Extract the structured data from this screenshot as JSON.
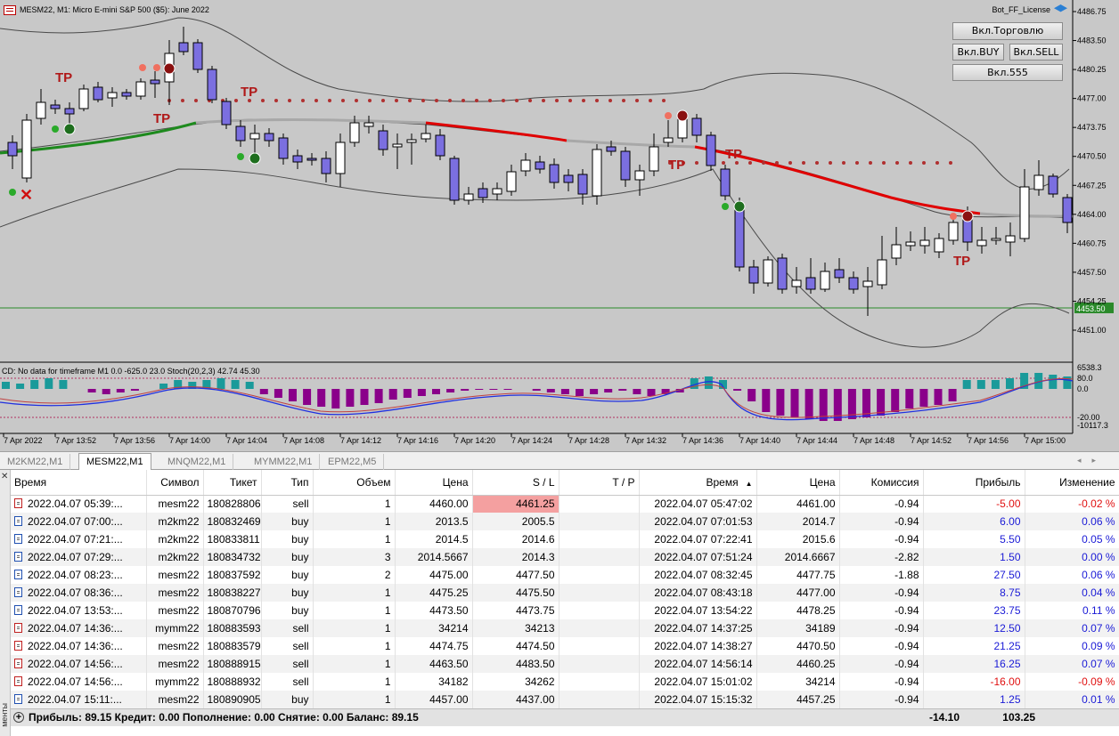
{
  "chart": {
    "title": "MESM22, M1:  Micro E-mini S&P 500 ($5): June 2022",
    "license_label": "Bot_FF_License",
    "buttons": {
      "trading": "Вкл.Торговлю",
      "buy": "Вкл.BUY",
      "sell": "Вкл.SELL",
      "b555": "Вкл.555"
    },
    "price_axis": [
      "4486.75",
      "4483.50",
      "4480.25",
      "4477.00",
      "4473.75",
      "4470.50",
      "4467.25",
      "4464.00",
      "4460.75",
      "4457.50",
      "4454.25",
      "4451.00"
    ],
    "current_price": "4453.50",
    "sub_title": "CD: No data for timeframe M1 0.0 -625.0 23.0 Stoch(20,2,3) 42.74 45.30",
    "sub_axis": [
      "6538.3",
      "80.0",
      "0.0",
      "-20.00",
      "-10117.3"
    ],
    "time_axis": [
      "7 Apr 2022",
      "7 Apr 13:52",
      "7 Apr 13:56",
      "7 Apr 14:00",
      "7 Apr 14:04",
      "7 Apr 14:08",
      "7 Apr 14:12",
      "7 Apr 14:16",
      "7 Apr 14:20",
      "7 Apr 14:24",
      "7 Apr 14:28",
      "7 Apr 14:32",
      "7 Apr 14:36",
      "7 Apr 14:40",
      "7 Apr 14:44",
      "7 Apr 14:48",
      "7 Apr 14:52",
      "7 Apr 14:56",
      "7 Apr 15:00"
    ],
    "tp_label": "TP",
    "colors": {
      "bull_candle": "#ffffff",
      "bear_candle": "#7b6fe0",
      "ma_green": "#1e8a1e",
      "ma_red": "#e00000",
      "ma_gray": "#a8a8a8",
      "hist_teal": "#1a9a9a",
      "hist_purple": "#8a008a"
    }
  },
  "tabs": [
    "M2KM22,M1",
    "MESM22,M1",
    "MNQM22,M1",
    "MYMM22,M1",
    "EPM22,M5"
  ],
  "active_tab": "MESM22,M1",
  "table": {
    "headers": [
      "Время",
      "Символ",
      "Тикет",
      "Тип",
      "Объем",
      "Цена",
      "S / L",
      "T / P",
      "Время",
      "Цена",
      "Комиссия",
      "Прибыль",
      "Изменение"
    ],
    "sort_indicator": "▲",
    "rows": [
      [
        "2022.04.07 05:39:...",
        "mesm22",
        "180828806",
        "sell",
        "1",
        "4460.00",
        "4461.25",
        "",
        "2022.04.07 05:47:02",
        "4461.00",
        "-0.94",
        "-5.00",
        "-0.02 %"
      ],
      [
        "2022.04.07 07:00:...",
        "m2km22",
        "180832469",
        "buy",
        "1",
        "2013.5",
        "2005.5",
        "",
        "2022.04.07 07:01:53",
        "2014.7",
        "-0.94",
        "6.00",
        "0.06 %"
      ],
      [
        "2022.04.07 07:21:...",
        "m2km22",
        "180833811",
        "buy",
        "1",
        "2014.5",
        "2014.6",
        "",
        "2022.04.07 07:22:41",
        "2015.6",
        "-0.94",
        "5.50",
        "0.05 %"
      ],
      [
        "2022.04.07 07:29:...",
        "m2km22",
        "180834732",
        "buy",
        "3",
        "2014.5667",
        "2014.3",
        "",
        "2022.04.07 07:51:24",
        "2014.6667",
        "-2.82",
        "1.50",
        "0.00 %"
      ],
      [
        "2022.04.07 08:23:...",
        "mesm22",
        "180837592",
        "buy",
        "2",
        "4475.00",
        "4477.50",
        "",
        "2022.04.07 08:32:45",
        "4477.75",
        "-1.88",
        "27.50",
        "0.06 %"
      ],
      [
        "2022.04.07 08:36:...",
        "mesm22",
        "180838227",
        "buy",
        "1",
        "4475.25",
        "4475.50",
        "",
        "2022.04.07 08:43:18",
        "4477.00",
        "-0.94",
        "8.75",
        "0.04 %"
      ],
      [
        "2022.04.07 13:53:...",
        "mesm22",
        "180870796",
        "buy",
        "1",
        "4473.50",
        "4473.75",
        "",
        "2022.04.07 13:54:22",
        "4478.25",
        "-0.94",
        "23.75",
        "0.11 %"
      ],
      [
        "2022.04.07 14:36:...",
        "mymm22",
        "180883593",
        "sell",
        "1",
        "34214",
        "34213",
        "",
        "2022.04.07 14:37:25",
        "34189",
        "-0.94",
        "12.50",
        "0.07 %"
      ],
      [
        "2022.04.07 14:36:...",
        "mesm22",
        "180883579",
        "sell",
        "1",
        "4474.75",
        "4474.50",
        "",
        "2022.04.07 14:38:27",
        "4470.50",
        "-0.94",
        "21.25",
        "0.09 %"
      ],
      [
        "2022.04.07 14:56:...",
        "mesm22",
        "180888915",
        "sell",
        "1",
        "4463.50",
        "4483.50",
        "",
        "2022.04.07 14:56:14",
        "4460.25",
        "-0.94",
        "16.25",
        "0.07 %"
      ],
      [
        "2022.04.07 14:56:...",
        "mymm22",
        "180888932",
        "sell",
        "1",
        "34182",
        "34262",
        "",
        "2022.04.07 15:01:02",
        "34214",
        "-0.94",
        "-16.00",
        "-0.09 %"
      ],
      [
        "2022.04.07 15:11:...",
        "mesm22",
        "180890905",
        "buy",
        "1",
        "4457.00",
        "4437.00",
        "",
        "2022.04.07 15:15:32",
        "4457.25",
        "-0.94",
        "1.25",
        "0.01 %"
      ]
    ]
  },
  "summary": {
    "text": "Прибыль: 89.15  Кредит: 0.00  Пополнение: 0.00  Снятие: 0.00  Баланс: 89.15",
    "commission": "-14.10",
    "profit": "103.25"
  },
  "side_label": "менты"
}
